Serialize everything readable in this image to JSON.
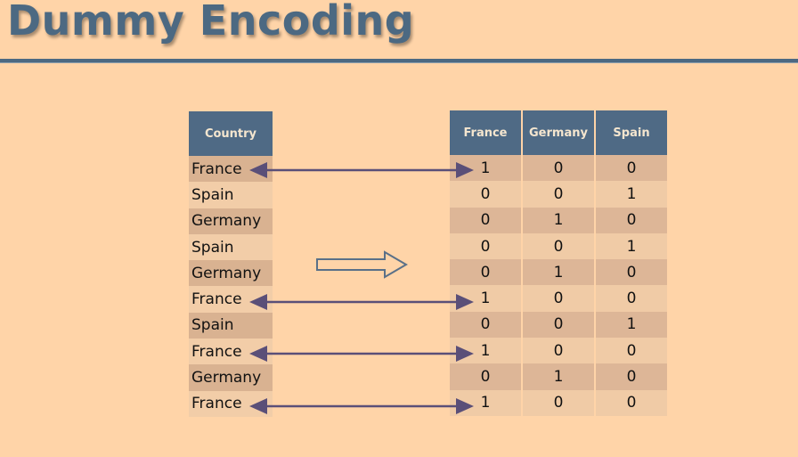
{
  "slide": {
    "title": "Dummy Encoding"
  },
  "country_table": {
    "header": "Country",
    "rows": [
      "France",
      "Spain",
      "Germany",
      "Spain",
      "Germany",
      "France",
      "Spain",
      "France",
      "Germany",
      "France"
    ]
  },
  "dummy_table": {
    "headers": [
      "France",
      "Germany",
      "Spain"
    ],
    "rows": [
      [
        "1",
        "0",
        "0"
      ],
      [
        "0",
        "0",
        "1"
      ],
      [
        "0",
        "1",
        "0"
      ],
      [
        "0",
        "0",
        "1"
      ],
      [
        "0",
        "1",
        "0"
      ],
      [
        "1",
        "0",
        "0"
      ],
      [
        "0",
        "0",
        "1"
      ],
      [
        "1",
        "0",
        "0"
      ],
      [
        "0",
        "1",
        "0"
      ],
      [
        "1",
        "0",
        "0"
      ]
    ]
  },
  "colors": {
    "accent": "#4C6982",
    "background": "#FFD4A8",
    "arrow": "#5A4F78"
  }
}
